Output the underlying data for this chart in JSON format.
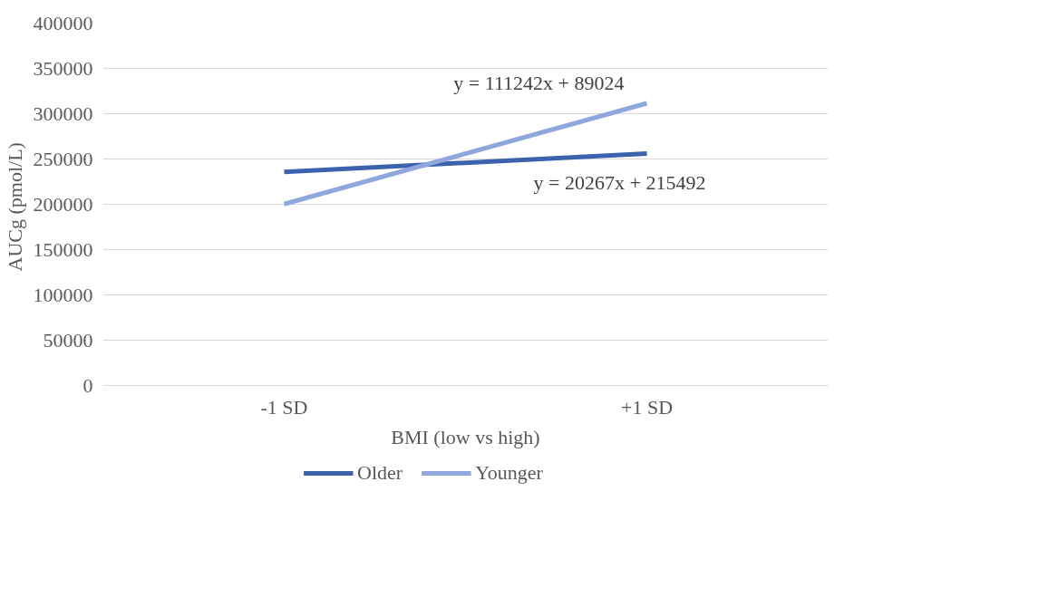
{
  "chart_data": {
    "type": "line",
    "xlabel": "BMI (low vs high)",
    "ylabel": "AUCg  (pmol/L)",
    "categories": [
      "-1 SD",
      "+1 SD"
    ],
    "series": [
      {
        "name": "Older",
        "color": "#3a62ad",
        "values": [
          235759,
          256026
        ]
      },
      {
        "name": "Younger",
        "color": "#8fa7dc",
        "values": [
          200266,
          311508
        ]
      }
    ],
    "ylim": [
      0,
      400000
    ],
    "yticks": [
      0,
      50000,
      100000,
      150000,
      200000,
      250000,
      300000,
      350000,
      400000
    ],
    "grid": "y",
    "legend": "bottom",
    "marker": "none",
    "line_style": "solid",
    "annotations": [
      "y = 111242x + 89024",
      "y = 20267x + 215492"
    ]
  }
}
